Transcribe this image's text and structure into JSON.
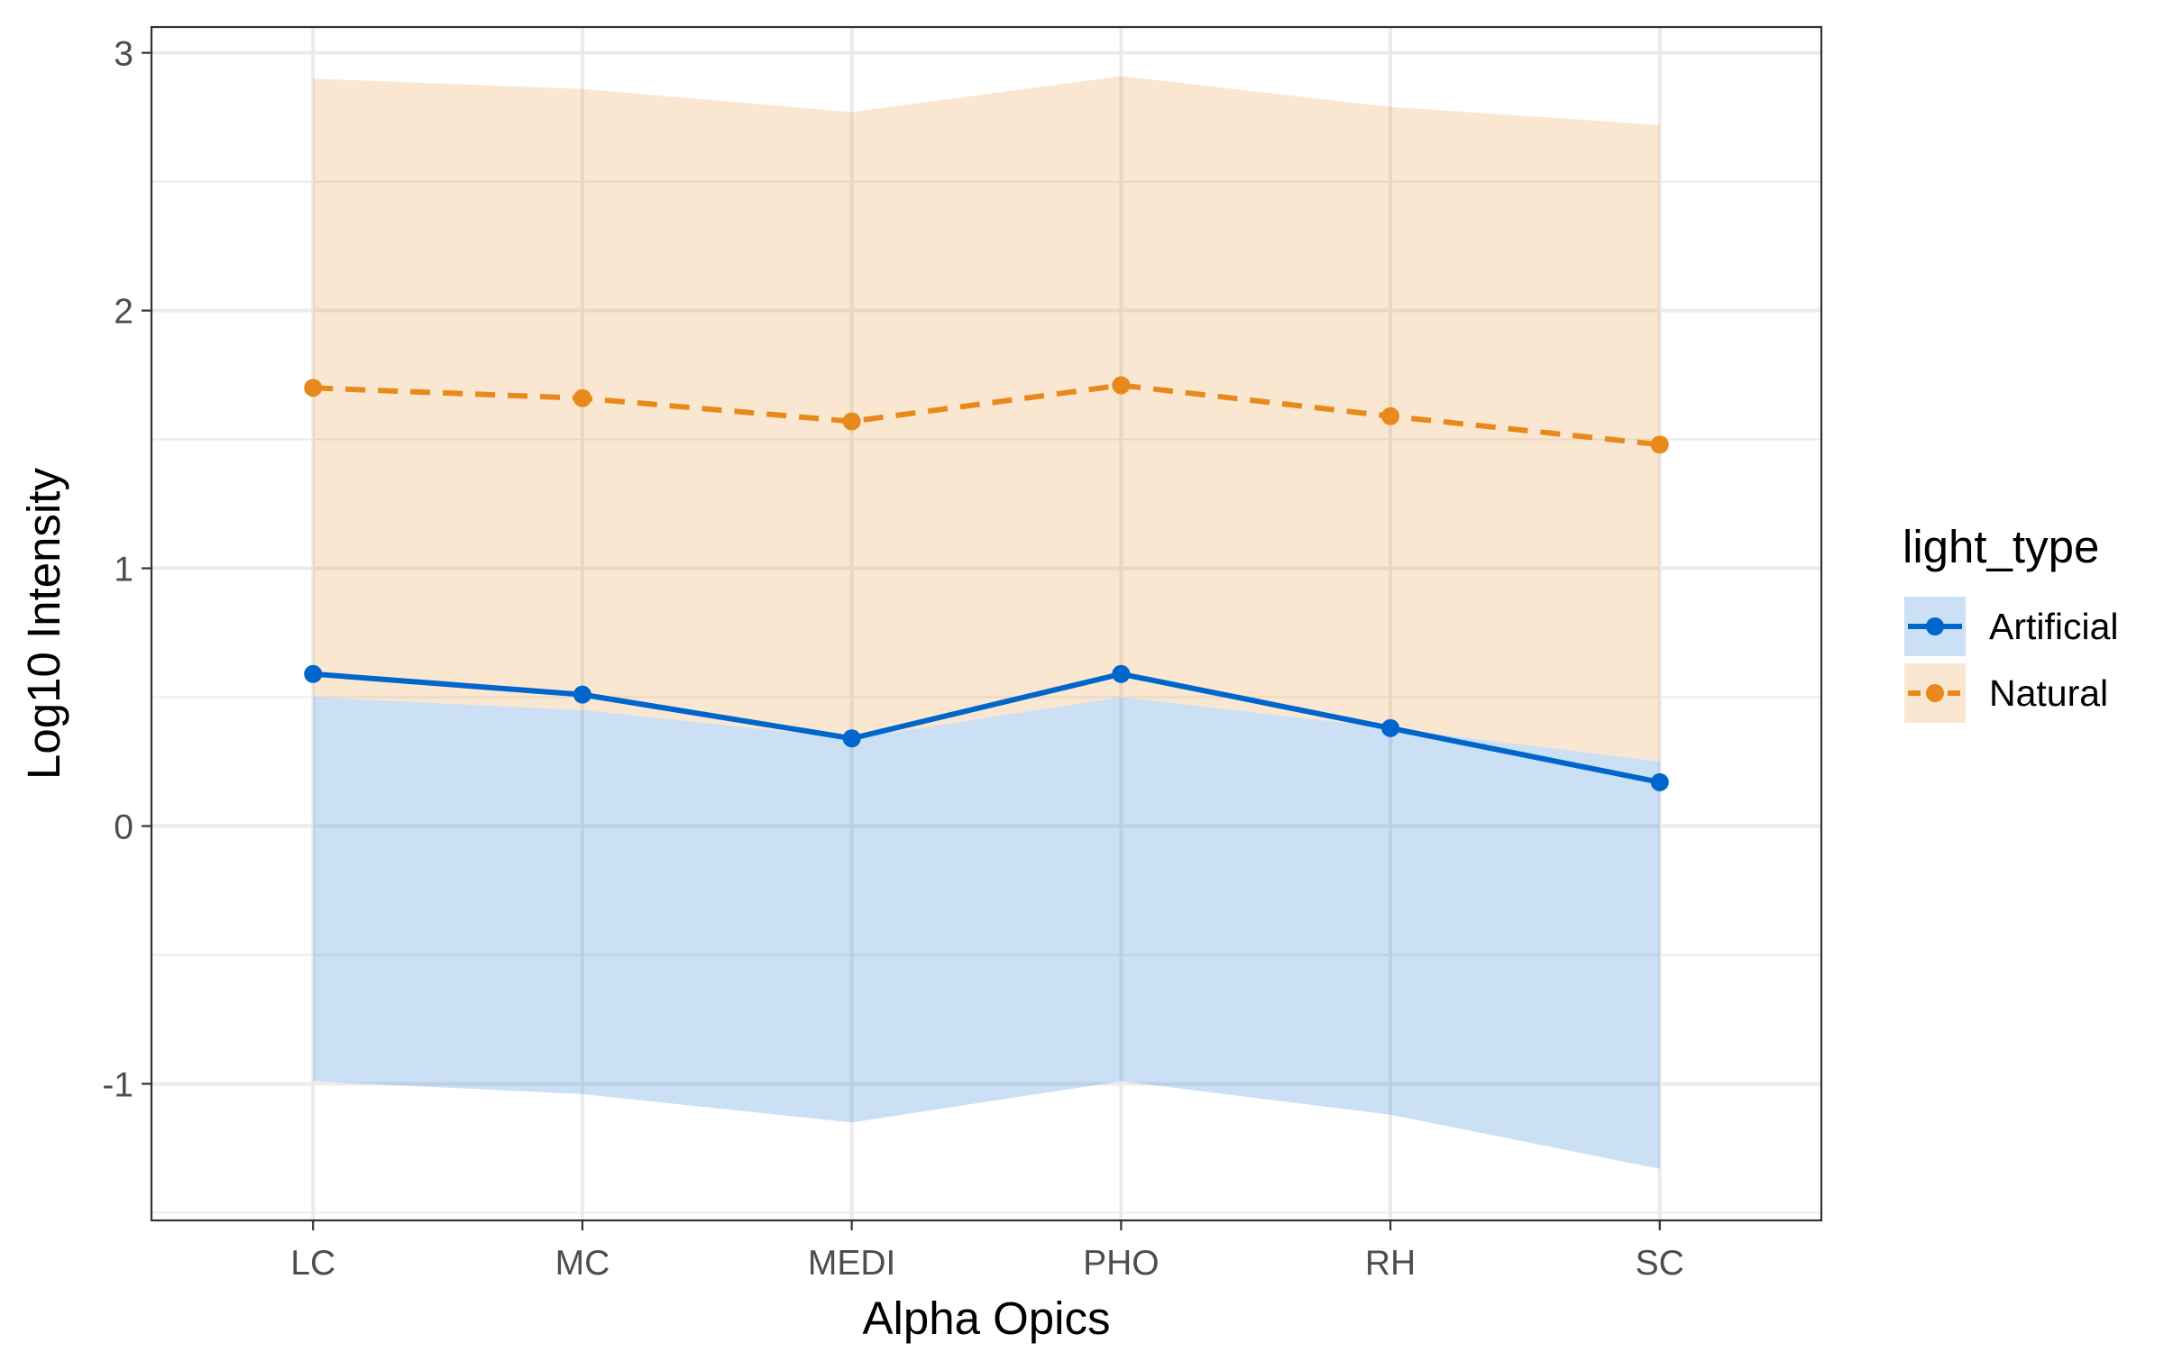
{
  "chart_data": {
    "type": "line",
    "xlabel": "Alpha Opics",
    "ylabel": "Log10 Intensity",
    "categories": [
      "LC",
      "MC",
      "MEDI",
      "PHO",
      "RH",
      "SC"
    ],
    "ylim": [
      -1.53,
      3.1
    ],
    "y_ticks": [
      -1,
      0,
      1,
      2,
      3
    ],
    "y_tick_labels": [
      "-1",
      "0",
      "1",
      "2",
      "3"
    ],
    "grid": true,
    "legend": {
      "title": "light_type",
      "position": "right"
    },
    "series": [
      {
        "name": "Artificial",
        "color": "#0066cc",
        "band_color": "#cce0f5",
        "line_style": "solid",
        "values": [
          0.59,
          0.51,
          0.34,
          0.59,
          0.38,
          0.17
        ],
        "lower": [
          -0.99,
          -1.04,
          -1.15,
          -0.99,
          -1.12,
          -1.33
        ],
        "upper": [
          0.5,
          0.45,
          0.34,
          0.5,
          0.38,
          0.25
        ]
      },
      {
        "name": "Natural",
        "color": "#e8891c",
        "band_color": "#fde5c7",
        "line_style": "dashed",
        "values": [
          1.7,
          1.66,
          1.57,
          1.71,
          1.59,
          1.48
        ],
        "lower": [
          0.5,
          0.45,
          0.34,
          0.5,
          0.38,
          0.25
        ],
        "upper": [
          2.9,
          2.86,
          2.77,
          2.91,
          2.79,
          2.72
        ]
      }
    ],
    "overlap_color": "#d8cfc4"
  }
}
